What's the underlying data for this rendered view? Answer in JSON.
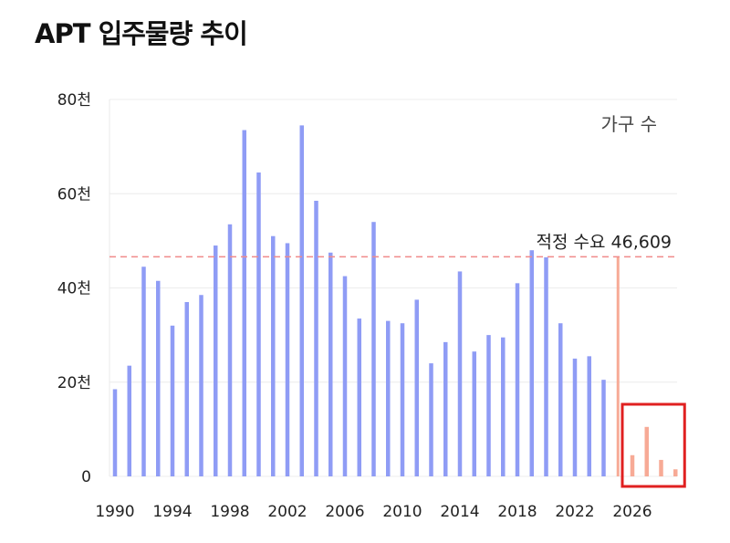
{
  "title": "APT 입주물량 추이",
  "chart_data": {
    "type": "bar",
    "title": "APT 입주물량 추이",
    "unit_label": "가구 수",
    "ylim": [
      0,
      80000
    ],
    "y_ticks": [
      {
        "value": 0,
        "label": "0"
      },
      {
        "value": 20000,
        "label": "20천"
      },
      {
        "value": 40000,
        "label": "40천"
      },
      {
        "value": 60000,
        "label": "60천"
      },
      {
        "value": 80000,
        "label": "80천"
      }
    ],
    "x_ticks": [
      "1990",
      "1994",
      "1998",
      "2002",
      "2006",
      "2010",
      "2014",
      "2018",
      "2022",
      "2026"
    ],
    "x_range": [
      1990,
      2029
    ],
    "grid": true,
    "reference_line": {
      "label": "적정 수요 46,609",
      "value": 46609,
      "color": "#f08a8a"
    },
    "highlight_box": {
      "from": 2026,
      "to": 2029,
      "color": "#e02020"
    },
    "series": [
      {
        "color": "#8f9cf5",
        "x": [
          1990,
          1991,
          1992,
          1993,
          1994,
          1995,
          1996,
          1997,
          1998,
          1999,
          2000,
          2001,
          2002,
          2003,
          2004,
          2005,
          2006,
          2007,
          2008,
          2009,
          2010,
          2011,
          2012,
          2013,
          2014,
          2015,
          2016,
          2017,
          2018,
          2019,
          2020,
          2021,
          2022,
          2023,
          2024
        ],
        "values": [
          18500,
          23500,
          44500,
          41500,
          32000,
          37000,
          38500,
          49000,
          53500,
          73500,
          64500,
          51000,
          49500,
          74500,
          58500,
          47500,
          42500,
          33500,
          54000,
          33000,
          32500,
          37500,
          24000,
          28500,
          43500,
          26500,
          30000,
          29500,
          41000,
          48000,
          46500,
          32500,
          25000,
          25500,
          20500
        ]
      },
      {
        "color": "#f7aa96",
        "x": [
          2025,
          2026,
          2027,
          2028,
          2029
        ],
        "values": [
          46609,
          4500,
          10500,
          3500,
          1500
        ]
      }
    ]
  }
}
